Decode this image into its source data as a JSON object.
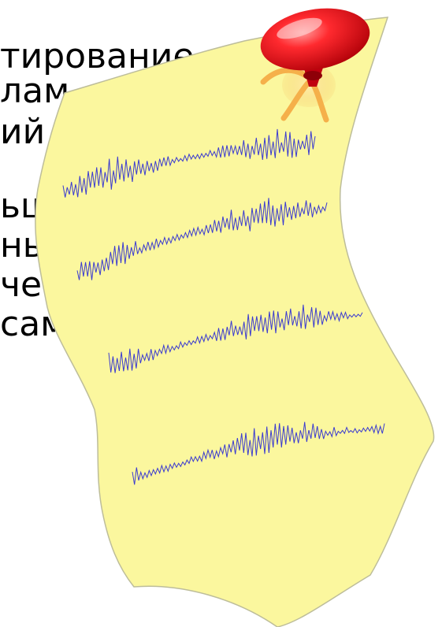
{
  "background_text": {
    "lines": [
      "тирование",
      "лам",
      "ий",
      "ьш                       а",
      "нь                       ых,",
      "че                       х",
      "сам"
    ]
  },
  "colors": {
    "paper_fill": "#fbf79e",
    "paper_stroke": "#bdbd9a",
    "wave": "#3b3bd0",
    "pin_red": "#e8141b",
    "pin_highlight": "#ff8a8a",
    "pin_shadow": "#b00008",
    "pin_base_glow": "#f6c96a",
    "pin_ribbon": "#f5b04a"
  },
  "icons": {
    "pushpin": "pushpin-icon",
    "note": "sticky-note-icon"
  }
}
